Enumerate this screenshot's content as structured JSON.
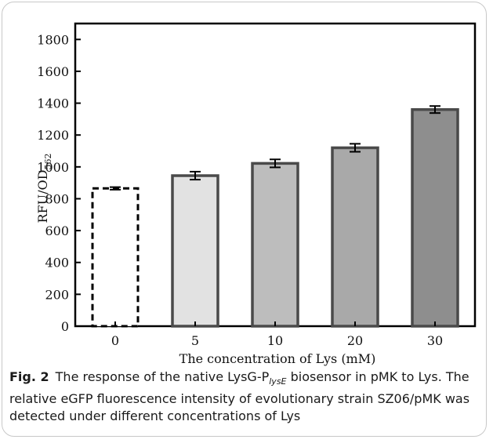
{
  "chart_data": {
    "type": "bar",
    "categories": [
      "0",
      "5",
      "10",
      "20",
      "30"
    ],
    "values": [
      865,
      945,
      1022,
      1120,
      1360
    ],
    "errors": [
      8,
      25,
      25,
      25,
      22
    ],
    "xlabel": "The concentration of Lys (mM)",
    "ylabel_main": "RFU/OD",
    "ylabel_sub": "562",
    "ylim": [
      0,
      1900
    ],
    "yticks": [
      0,
      200,
      400,
      600,
      800,
      1000,
      1200,
      1400,
      1600,
      1800
    ],
    "bar_colors": [
      "#ffffff",
      "#e2e2e2",
      "#bdbdbd",
      "#a9a9a9",
      "#8e8e8e"
    ],
    "bar_styles": [
      "dashed",
      "solid",
      "solid",
      "solid",
      "solid"
    ],
    "grid": false,
    "legend": "none"
  },
  "caption": {
    "label": "Fig. 2",
    "text_before": "The response of the native LysG-P",
    "subscript": "lysE",
    "text_after": " biosensor in pMK to Lys. The relative eGFP fluorescence intensity of evolutionary strain SZ06/pMK was detected under different concentrations of Lys"
  }
}
